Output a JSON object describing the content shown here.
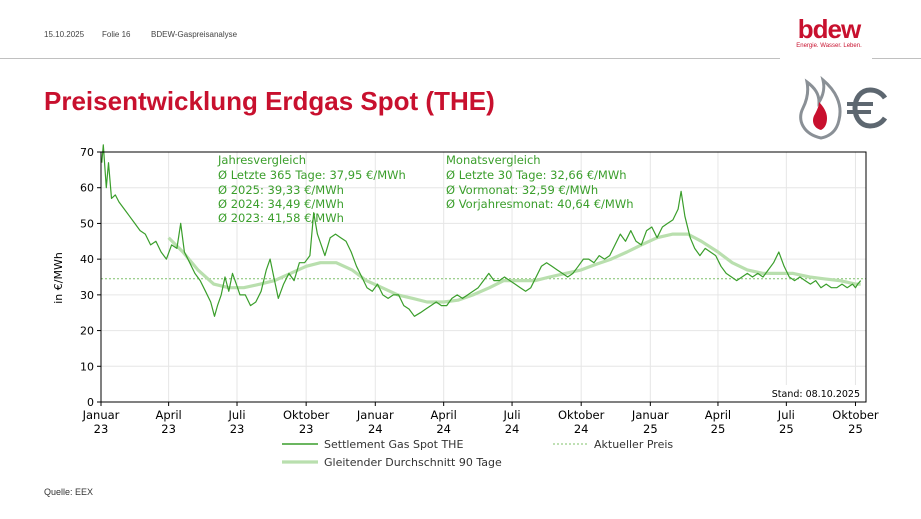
{
  "header": {
    "date": "15.10.2025",
    "slide": "Folie 16",
    "deck": "BDEW-Gaspreisanalyse"
  },
  "logo": {
    "word": "bdew",
    "tagline": "Energie. Wasser. Leben."
  },
  "title": "Preisentwicklung Erdgas Spot (THE)",
  "source": "Quelle: EEX",
  "colors": {
    "title": "#c8102e",
    "spot": "#3a9e2b",
    "avg": "#b9dfae",
    "current": "#7fc06a",
    "text_green": "#3a9e2b"
  },
  "icons": [
    "flame-icon",
    "euro-icon"
  ],
  "chart_data": {
    "type": "line",
    "ylabel": "in €/MWh",
    "ylim": [
      0,
      70
    ],
    "yticks": [
      0,
      10,
      20,
      30,
      40,
      50,
      60,
      70
    ],
    "x_range": [
      "2023-01-01",
      "2025-10-15"
    ],
    "xticks": [
      {
        "date": "2023-01-01",
        "line1": "Januar",
        "line2": "23"
      },
      {
        "date": "2023-04-01",
        "line1": "April",
        "line2": "23"
      },
      {
        "date": "2023-07-01",
        "line1": "Juli",
        "line2": "23"
      },
      {
        "date": "2023-10-01",
        "line1": "Oktober",
        "line2": "23"
      },
      {
        "date": "2024-01-01",
        "line1": "Januar",
        "line2": "24"
      },
      {
        "date": "2024-04-01",
        "line1": "April",
        "line2": "24"
      },
      {
        "date": "2024-07-01",
        "line1": "Juli",
        "line2": "24"
      },
      {
        "date": "2024-10-01",
        "line1": "Oktober",
        "line2": "24"
      },
      {
        "date": "2025-01-01",
        "line1": "Januar",
        "line2": "25"
      },
      {
        "date": "2025-04-01",
        "line1": "April",
        "line2": "25"
      },
      {
        "date": "2025-07-01",
        "line1": "Juli",
        "line2": "25"
      },
      {
        "date": "2025-10-01",
        "line1": "Oktober",
        "line2": "25"
      }
    ],
    "grid": true,
    "current_price": 34.5,
    "stand": "Stand: 08.10.2025",
    "annotations": {
      "year": {
        "heading": "Jahresvergleich",
        "lines": [
          "Ø Letzte 365 Tage: 37,95 €/MWh",
          "Ø 2025: 39,33 €/MWh",
          "Ø 2024: 34,49 €/MWh",
          "Ø 2023: 41,58 €/MWh"
        ]
      },
      "month": {
        "heading": "Monatsvergleich",
        "lines": [
          "Ø Letzte 30 Tage: 32,66 €/MWh",
          "Ø Vormonat: 32,59 €/MWh",
          "Ø Vorjahresmonat: 40,64 €/MWh"
        ]
      }
    },
    "legend": {
      "placement": "bottom",
      "entries": [
        "Settlement Gas Spot THE",
        "Aktueller Preis",
        "Gleitender Durchschnitt 90 Tage"
      ]
    },
    "series": [
      {
        "name": "Settlement Gas Spot THE",
        "points": [
          [
            "2023-01-02",
            67
          ],
          [
            "2023-01-04",
            72
          ],
          [
            "2023-01-08",
            60
          ],
          [
            "2023-01-11",
            67
          ],
          [
            "2023-01-15",
            57
          ],
          [
            "2023-01-20",
            58
          ],
          [
            "2023-01-25",
            56
          ],
          [
            "2023-02-01",
            54
          ],
          [
            "2023-02-08",
            52
          ],
          [
            "2023-02-15",
            50
          ],
          [
            "2023-02-22",
            48
          ],
          [
            "2023-03-01",
            47
          ],
          [
            "2023-03-08",
            44
          ],
          [
            "2023-03-15",
            45
          ],
          [
            "2023-03-22",
            42
          ],
          [
            "2023-03-29",
            40
          ],
          [
            "2023-04-05",
            44
          ],
          [
            "2023-04-12",
            43
          ],
          [
            "2023-04-17",
            50
          ],
          [
            "2023-04-22",
            42
          ],
          [
            "2023-04-29",
            39
          ],
          [
            "2023-05-06",
            36
          ],
          [
            "2023-05-13",
            34
          ],
          [
            "2023-05-20",
            31
          ],
          [
            "2023-05-27",
            28
          ],
          [
            "2023-06-01",
            24
          ],
          [
            "2023-06-05",
            27
          ],
          [
            "2023-06-10",
            30
          ],
          [
            "2023-06-15",
            35
          ],
          [
            "2023-06-20",
            31
          ],
          [
            "2023-06-25",
            36
          ],
          [
            "2023-06-30",
            33
          ],
          [
            "2023-07-05",
            30
          ],
          [
            "2023-07-12",
            30
          ],
          [
            "2023-07-19",
            27
          ],
          [
            "2023-07-26",
            28
          ],
          [
            "2023-08-02",
            31
          ],
          [
            "2023-08-09",
            37
          ],
          [
            "2023-08-14",
            40
          ],
          [
            "2023-08-19",
            35
          ],
          [
            "2023-08-25",
            29
          ],
          [
            "2023-09-01",
            33
          ],
          [
            "2023-09-08",
            36
          ],
          [
            "2023-09-15",
            34
          ],
          [
            "2023-09-22",
            39
          ],
          [
            "2023-09-29",
            39
          ],
          [
            "2023-10-06",
            41
          ],
          [
            "2023-10-11",
            53
          ],
          [
            "2023-10-16",
            47
          ],
          [
            "2023-10-21",
            44
          ],
          [
            "2023-10-26",
            41
          ],
          [
            "2023-11-02",
            46
          ],
          [
            "2023-11-09",
            47
          ],
          [
            "2023-11-16",
            46
          ],
          [
            "2023-11-23",
            45
          ],
          [
            "2023-11-30",
            42
          ],
          [
            "2023-12-07",
            38
          ],
          [
            "2023-12-14",
            35
          ],
          [
            "2023-12-21",
            32
          ],
          [
            "2023-12-28",
            31
          ],
          [
            "2024-01-04",
            33
          ],
          [
            "2024-01-11",
            30
          ],
          [
            "2024-01-18",
            29
          ],
          [
            "2024-01-25",
            30
          ],
          [
            "2024-02-01",
            30
          ],
          [
            "2024-02-08",
            27
          ],
          [
            "2024-02-15",
            26
          ],
          [
            "2024-02-22",
            24
          ],
          [
            "2024-03-01",
            25
          ],
          [
            "2024-03-08",
            26
          ],
          [
            "2024-03-15",
            27
          ],
          [
            "2024-03-22",
            28
          ],
          [
            "2024-03-29",
            27
          ],
          [
            "2024-04-05",
            27
          ],
          [
            "2024-04-12",
            29
          ],
          [
            "2024-04-19",
            30
          ],
          [
            "2024-04-26",
            29
          ],
          [
            "2024-05-03",
            30
          ],
          [
            "2024-05-10",
            31
          ],
          [
            "2024-05-17",
            32
          ],
          [
            "2024-05-24",
            34
          ],
          [
            "2024-05-31",
            36
          ],
          [
            "2024-06-07",
            34
          ],
          [
            "2024-06-14",
            34
          ],
          [
            "2024-06-21",
            35
          ],
          [
            "2024-06-28",
            34
          ],
          [
            "2024-07-05",
            33
          ],
          [
            "2024-07-12",
            32
          ],
          [
            "2024-07-19",
            31
          ],
          [
            "2024-07-26",
            32
          ],
          [
            "2024-08-02",
            35
          ],
          [
            "2024-08-09",
            38
          ],
          [
            "2024-08-16",
            39
          ],
          [
            "2024-08-23",
            38
          ],
          [
            "2024-08-30",
            37
          ],
          [
            "2024-09-06",
            36
          ],
          [
            "2024-09-13",
            35
          ],
          [
            "2024-09-20",
            36
          ],
          [
            "2024-09-27",
            38
          ],
          [
            "2024-10-04",
            40
          ],
          [
            "2024-10-11",
            40
          ],
          [
            "2024-10-18",
            39
          ],
          [
            "2024-10-25",
            41
          ],
          [
            "2024-11-01",
            40
          ],
          [
            "2024-11-08",
            41
          ],
          [
            "2024-11-15",
            44
          ],
          [
            "2024-11-22",
            47
          ],
          [
            "2024-11-29",
            45
          ],
          [
            "2024-12-06",
            48
          ],
          [
            "2024-12-13",
            45
          ],
          [
            "2024-12-20",
            44
          ],
          [
            "2024-12-27",
            48
          ],
          [
            "2025-01-03",
            49
          ],
          [
            "2025-01-10",
            46
          ],
          [
            "2025-01-17",
            49
          ],
          [
            "2025-01-24",
            50
          ],
          [
            "2025-01-31",
            51
          ],
          [
            "2025-02-07",
            54
          ],
          [
            "2025-02-11",
            59
          ],
          [
            "2025-02-16",
            52
          ],
          [
            "2025-02-23",
            46
          ],
          [
            "2025-03-01",
            43
          ],
          [
            "2025-03-08",
            41
          ],
          [
            "2025-03-15",
            43
          ],
          [
            "2025-03-22",
            42
          ],
          [
            "2025-03-29",
            41
          ],
          [
            "2025-04-05",
            38
          ],
          [
            "2025-04-12",
            36
          ],
          [
            "2025-04-19",
            35
          ],
          [
            "2025-04-26",
            34
          ],
          [
            "2025-05-03",
            35
          ],
          [
            "2025-05-10",
            36
          ],
          [
            "2025-05-17",
            35
          ],
          [
            "2025-05-24",
            36
          ],
          [
            "2025-05-31",
            35
          ],
          [
            "2025-06-07",
            37
          ],
          [
            "2025-06-14",
            39
          ],
          [
            "2025-06-21",
            42
          ],
          [
            "2025-06-28",
            38
          ],
          [
            "2025-07-05",
            35
          ],
          [
            "2025-07-12",
            34
          ],
          [
            "2025-07-19",
            35
          ],
          [
            "2025-07-26",
            34
          ],
          [
            "2025-08-02",
            33
          ],
          [
            "2025-08-09",
            34
          ],
          [
            "2025-08-16",
            32
          ],
          [
            "2025-08-23",
            33
          ],
          [
            "2025-08-30",
            32
          ],
          [
            "2025-09-06",
            32
          ],
          [
            "2025-09-13",
            33
          ],
          [
            "2025-09-20",
            32
          ],
          [
            "2025-09-27",
            33
          ],
          [
            "2025-10-01",
            32
          ],
          [
            "2025-10-04",
            33
          ],
          [
            "2025-10-08",
            34
          ]
        ]
      },
      {
        "name": "Gleitender Durchschnitt 90 Tage",
        "points": [
          [
            "2023-04-01",
            46
          ],
          [
            "2023-04-20",
            42
          ],
          [
            "2023-05-10",
            37
          ],
          [
            "2023-05-31",
            33
          ],
          [
            "2023-06-20",
            32
          ],
          [
            "2023-07-10",
            32
          ],
          [
            "2023-08-01",
            33
          ],
          [
            "2023-08-20",
            34
          ],
          [
            "2023-09-10",
            36
          ],
          [
            "2023-10-01",
            38
          ],
          [
            "2023-10-20",
            39
          ],
          [
            "2023-11-10",
            39
          ],
          [
            "2023-12-01",
            37
          ],
          [
            "2023-12-20",
            34
          ],
          [
            "2024-01-10",
            32
          ],
          [
            "2024-01-31",
            30
          ],
          [
            "2024-02-20",
            29
          ],
          [
            "2024-03-10",
            28
          ],
          [
            "2024-04-01",
            28
          ],
          [
            "2024-04-20",
            28.5
          ],
          [
            "2024-05-10",
            30
          ],
          [
            "2024-06-01",
            32
          ],
          [
            "2024-06-20",
            34
          ],
          [
            "2024-07-10",
            34
          ],
          [
            "2024-08-01",
            34
          ],
          [
            "2024-08-20",
            35
          ],
          [
            "2024-09-10",
            36
          ],
          [
            "2024-10-01",
            37
          ],
          [
            "2024-10-20",
            38.5
          ],
          [
            "2024-11-10",
            40
          ],
          [
            "2024-12-01",
            42
          ],
          [
            "2024-12-20",
            44
          ],
          [
            "2025-01-10",
            46
          ],
          [
            "2025-01-31",
            47
          ],
          [
            "2025-02-20",
            47
          ],
          [
            "2025-03-10",
            45
          ],
          [
            "2025-04-01",
            42
          ],
          [
            "2025-04-20",
            39
          ],
          [
            "2025-05-10",
            37
          ],
          [
            "2025-05-31",
            36
          ],
          [
            "2025-06-20",
            36
          ],
          [
            "2025-07-10",
            36
          ],
          [
            "2025-08-01",
            35
          ],
          [
            "2025-08-20",
            34.5
          ],
          [
            "2025-09-10",
            34
          ],
          [
            "2025-10-01",
            33
          ],
          [
            "2025-10-08",
            33
          ]
        ]
      }
    ]
  }
}
